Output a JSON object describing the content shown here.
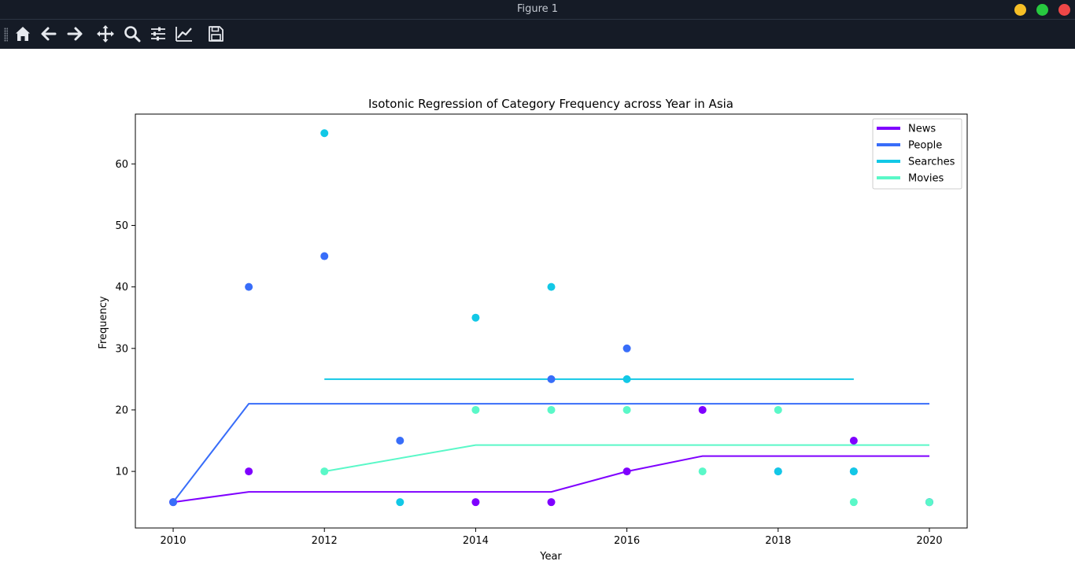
{
  "window": {
    "title": "Figure 1",
    "buttons": [
      {
        "name": "minimize-button",
        "color": "#f6bf26"
      },
      {
        "name": "maximize-button",
        "color": "#27c93f"
      },
      {
        "name": "close-button",
        "color": "#ef4747"
      }
    ]
  },
  "toolbar": {
    "tools": [
      {
        "name": "home-button",
        "icon": "home-icon"
      },
      {
        "name": "back-button",
        "icon": "arrow-left-icon"
      },
      {
        "name": "forward-button",
        "icon": "arrow-right-icon"
      },
      {
        "name": "pan-button",
        "icon": "move-icon"
      },
      {
        "name": "zoom-button",
        "icon": "magnifier-icon"
      },
      {
        "name": "configure-subplots-button",
        "icon": "sliders-icon"
      },
      {
        "name": "edit-axis-button",
        "icon": "line-chart-icon"
      },
      {
        "name": "save-button",
        "icon": "floppy-disk-icon"
      }
    ]
  },
  "chart_data": {
    "type": "scatter",
    "title": "Isotonic Regression of Category Frequency across Year in Asia",
    "xlabel": "Year",
    "ylabel": "Frequency",
    "xlim": [
      2009.5,
      2020.5
    ],
    "ylim": [
      0.8,
      68.1
    ],
    "xticks": [
      2010,
      2012,
      2014,
      2016,
      2018,
      2020
    ],
    "yticks": [
      10,
      20,
      30,
      40,
      50,
      60
    ],
    "grid": false,
    "legend_position": "top-right",
    "series": [
      {
        "name": "News",
        "color": "#7f00ff",
        "points": [
          [
            2010,
            5
          ],
          [
            2011,
            10
          ],
          [
            2014,
            5
          ],
          [
            2015,
            5
          ],
          [
            2016,
            10
          ],
          [
            2017,
            20
          ],
          [
            2019,
            15
          ],
          [
            2020,
            5
          ]
        ],
        "fit": [
          [
            2010,
            5
          ],
          [
            2011,
            6.67
          ],
          [
            2014,
            6.67
          ],
          [
            2015,
            6.67
          ],
          [
            2016,
            10
          ],
          [
            2017,
            12.5
          ],
          [
            2019,
            12.5
          ],
          [
            2020,
            12.5
          ]
        ]
      },
      {
        "name": "People",
        "color": "#386df9",
        "points": [
          [
            2010,
            5
          ],
          [
            2011,
            40
          ],
          [
            2012,
            45
          ],
          [
            2013,
            15
          ],
          [
            2015,
            25
          ],
          [
            2016,
            30
          ],
          [
            2018,
            10
          ],
          [
            2019,
            10
          ],
          [
            2020,
            5
          ]
        ],
        "fit": [
          [
            2010,
            5
          ],
          [
            2011,
            21
          ],
          [
            2012,
            21
          ],
          [
            2013,
            21
          ],
          [
            2015,
            21
          ],
          [
            2016,
            21
          ],
          [
            2018,
            21
          ],
          [
            2019,
            21
          ],
          [
            2020,
            21
          ]
        ]
      },
      {
        "name": "Searches",
        "color": "#12c8e6",
        "points": [
          [
            2012,
            65
          ],
          [
            2013,
            5
          ],
          [
            2014,
            35
          ],
          [
            2015,
            40
          ],
          [
            2016,
            25
          ],
          [
            2018,
            10
          ],
          [
            2019,
            10
          ]
        ],
        "fit": [
          [
            2012,
            25
          ],
          [
            2013,
            25
          ],
          [
            2014,
            25
          ],
          [
            2015,
            25
          ],
          [
            2016,
            25
          ],
          [
            2018,
            25
          ],
          [
            2019,
            25
          ]
        ]
      },
      {
        "name": "Movies",
        "color": "#5af8c8",
        "points": [
          [
            2012,
            10
          ],
          [
            2014,
            20
          ],
          [
            2015,
            20
          ],
          [
            2016,
            20
          ],
          [
            2017,
            10
          ],
          [
            2018,
            20
          ],
          [
            2019,
            5
          ],
          [
            2020,
            5
          ]
        ],
        "fit": [
          [
            2012,
            10
          ],
          [
            2014,
            14.29
          ],
          [
            2015,
            14.29
          ],
          [
            2016,
            14.29
          ],
          [
            2017,
            14.29
          ],
          [
            2018,
            14.29
          ],
          [
            2019,
            14.29
          ],
          [
            2020,
            14.29
          ]
        ]
      }
    ]
  }
}
